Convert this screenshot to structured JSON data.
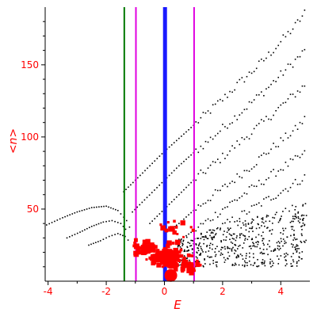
{
  "chart_data": {
    "type": "scatter",
    "xlabel": "E",
    "ylabel": "<n>",
    "xlim": [
      -4.1,
      5.0
    ],
    "ylim": [
      0,
      190
    ],
    "xticks": [
      -4,
      -2,
      0,
      2,
      4
    ],
    "xtick_labels": [
      "-4",
      "-2",
      "0",
      "2",
      "4"
    ],
    "yticks": [
      50,
      100,
      150
    ],
    "ytick_labels": [
      "50",
      "100",
      "150"
    ],
    "grid": false,
    "legend": "none",
    "vlines": [
      {
        "x": -1.38,
        "color": "#007700",
        "width": 2
      },
      {
        "x": -0.98,
        "color": "#e000e0",
        "width": 2
      },
      {
        "x": 0.02,
        "color": "#1a1aff",
        "width": 5
      },
      {
        "x": 1.02,
        "color": "#e000e0",
        "width": 2
      }
    ],
    "black_bands": [
      {
        "x": [
          -4.05,
          -3.5,
          -3.0,
          -2.5,
          -2.0,
          -1.6,
          -1.3,
          -1.1
        ],
        "y": [
          39,
          44,
          48,
          51,
          52,
          49,
          42,
          33
        ]
      },
      {
        "x": [
          -3.35,
          -2.9,
          -2.5,
          -2.1,
          -1.8,
          -1.5,
          -1.25
        ],
        "y": [
          30,
          34,
          38,
          41,
          42,
          40,
          34
        ]
      },
      {
        "x": [
          -2.6,
          -2.2,
          -1.9,
          -1.6,
          -1.35,
          -1.15
        ],
        "y": [
          25,
          28,
          31,
          33,
          31,
          26
        ]
      },
      {
        "x": [
          -1.4,
          -1.0,
          -0.5,
          0.0,
          0.5,
          1.0,
          1.5,
          2.0,
          2.5,
          3.0,
          3.5,
          4.0,
          4.5,
          4.9
        ],
        "y": [
          62,
          70,
          80,
          90,
          99,
          108,
          117,
          126,
          136,
          145,
          155,
          166,
          177,
          188
        ]
      },
      {
        "x": [
          -1.1,
          -0.6,
          0.0,
          0.5,
          1.0,
          1.5,
          2.0,
          2.5,
          3.0,
          3.5,
          4.0,
          4.5,
          4.9
        ],
        "y": [
          48,
          58,
          70,
          80,
          89,
          97,
          106,
          115,
          124,
          133,
          143,
          153,
          161
        ]
      },
      {
        "x": [
          -0.5,
          0.0,
          0.5,
          1.0,
          1.5,
          2.0,
          2.5,
          3.0,
          3.5,
          4.0,
          4.5,
          4.9
        ],
        "y": [
          40,
          50,
          60,
          70,
          78,
          86,
          95,
          103,
          112,
          121,
          130,
          137
        ]
      },
      {
        "x": [
          0.0,
          0.5,
          1.0,
          1.5,
          2.0,
          2.5,
          3.0,
          3.5,
          4.0,
          4.5,
          4.9
        ],
        "y": [
          33,
          40,
          49,
          57,
          64,
          72,
          80,
          89,
          97,
          105,
          114
        ]
      },
      {
        "x": [
          0.5,
          1.0,
          1.5,
          2.0,
          2.5,
          3.0,
          3.5,
          4.0,
          4.5,
          4.9
        ],
        "y": [
          28,
          35,
          42,
          50,
          57,
          64,
          71,
          78,
          84,
          89
        ]
      },
      {
        "x": [
          1.0,
          1.5,
          2.0,
          2.5,
          3.0,
          3.5,
          4.0,
          4.5,
          4.9
        ],
        "y": [
          26,
          32,
          38,
          44,
          50,
          56,
          62,
          68,
          73
        ]
      }
    ],
    "red_clusters": [
      {
        "x": 0.0,
        "y": 17,
        "sx": 0.35,
        "sy": 4,
        "n": 160
      },
      {
        "x": -0.7,
        "y": 23,
        "sx": 0.3,
        "sy": 4,
        "n": 40
      },
      {
        "x": 0.6,
        "y": 12,
        "sx": 0.4,
        "sy": 4,
        "n": 50
      },
      {
        "x": 0.3,
        "y": 35,
        "sx": 0.4,
        "sy": 8,
        "n": 18
      }
    ],
    "red_large_point": {
      "x": 0.22,
      "y": 4
    }
  }
}
